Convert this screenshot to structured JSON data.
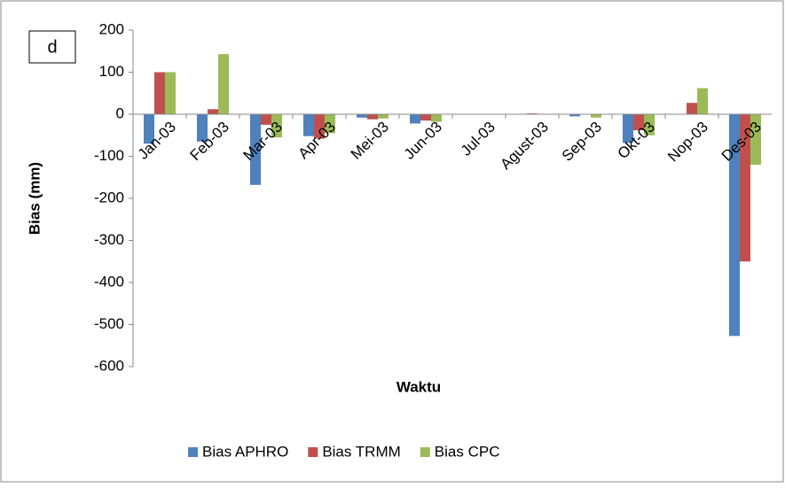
{
  "chart_data": {
    "type": "bar",
    "annotation": "d",
    "x_label": "Waktu",
    "y_label": "Bias (mm)",
    "categories": [
      "Jan-03",
      "Feb-03",
      "Mar-03",
      "Apr-03",
      "Mei-03",
      "Jun-03",
      "Jul-03",
      "Agust-03",
      "Sep-03",
      "Okt-03",
      "Nop-03",
      "Des-03"
    ],
    "series": [
      {
        "name": "Bias APHRO",
        "color": "#4f81bd",
        "values": [
          -70,
          -65,
          -168,
          -52,
          -8,
          -22,
          -1,
          0,
          -5,
          -68,
          0,
          -527
        ]
      },
      {
        "name": "Bias TRMM",
        "color": "#c0504d",
        "values": [
          100,
          12,
          -25,
          -58,
          -12,
          -15,
          0,
          2,
          0,
          -38,
          27,
          -350
        ]
      },
      {
        "name": "Bias CPC",
        "color": "#9bbb59",
        "values": [
          100,
          143,
          -55,
          -45,
          -10,
          -18,
          0,
          0,
          -8,
          -50,
          62,
          -120
        ]
      }
    ],
    "ylim": [
      -600,
      200
    ],
    "yticks": [
      -600,
      -500,
      -400,
      -300,
      -200,
      -100,
      0,
      100,
      200
    ],
    "grid": false,
    "legend": "bottom"
  }
}
